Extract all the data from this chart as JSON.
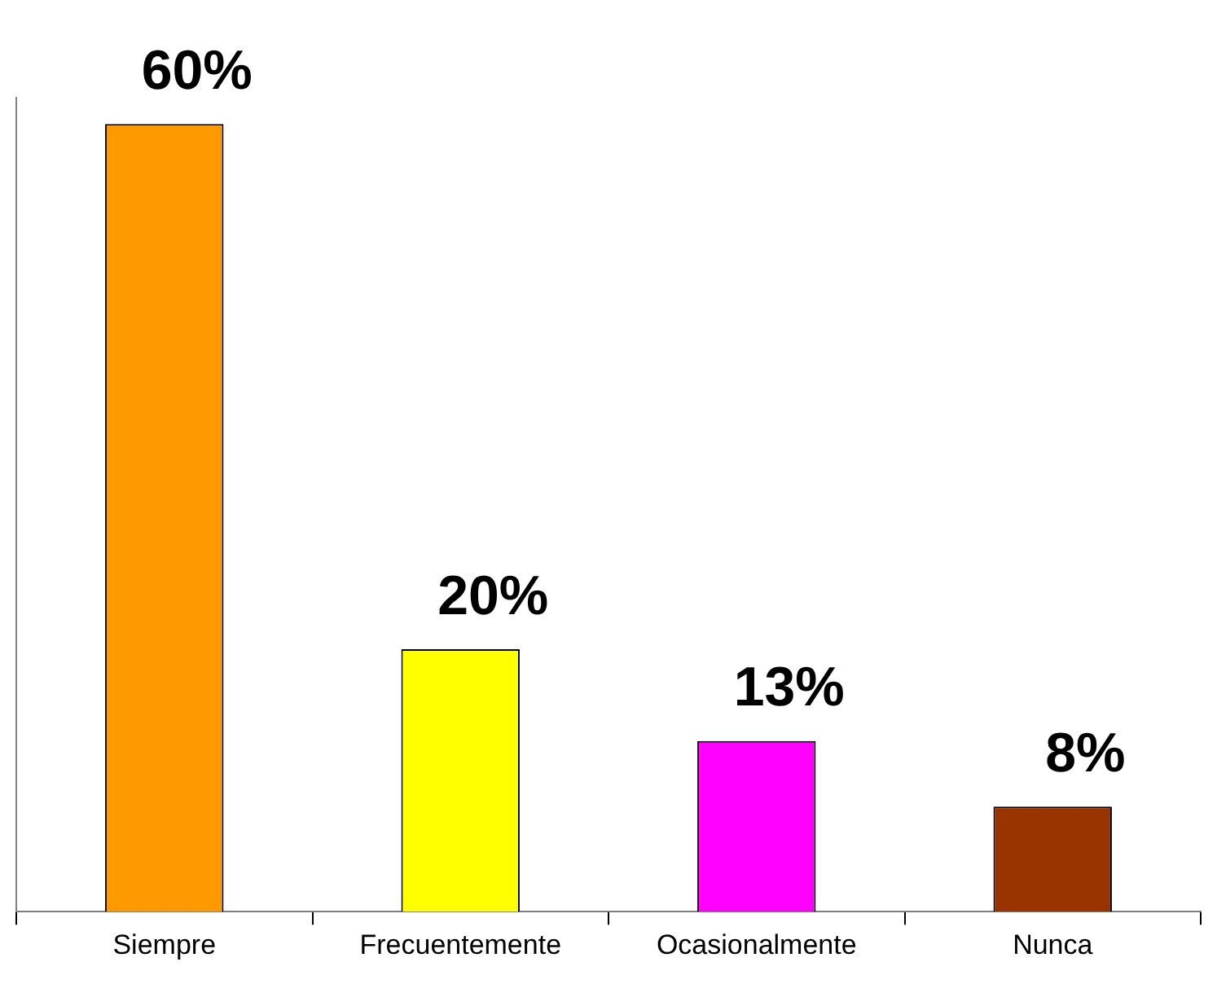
{
  "chart_data": {
    "type": "bar",
    "categories": [
      "Siempre",
      "Frecuentemente",
      "Ocasionalmente",
      "Nunca"
    ],
    "values": [
      60,
      20,
      13,
      8
    ],
    "colors": [
      "#ff9900",
      "#ffff00",
      "#ff00ff",
      "#993300"
    ],
    "value_labels": [
      "60%",
      "20%",
      "13%",
      "8%"
    ],
    "ylim": [
      0,
      62
    ],
    "tick_labels": "x",
    "grid": false,
    "legend": false
  }
}
